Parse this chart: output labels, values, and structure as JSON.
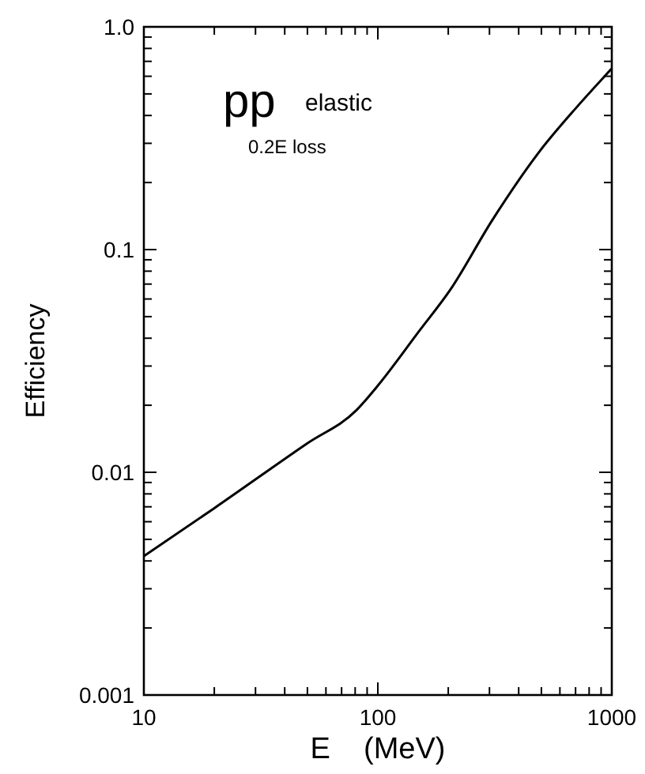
{
  "chart_data": {
    "type": "line",
    "xlabel": "E    (MeV)",
    "ylabel": "Efficiency",
    "log": "xy",
    "grid": false,
    "marker": "none",
    "line_style": "solid",
    "annotations": [
      "pp",
      "elastic",
      "0.2E loss"
    ],
    "xlim": [
      10,
      1000
    ],
    "ylim": [
      0.001,
      1.0
    ],
    "xticks": [
      10,
      {
        "value": 20,
        "label": null
      },
      {
        "value": 30,
        "label": null
      },
      {
        "value": 40,
        "label": null
      },
      {
        "value": 50,
        "label": null
      },
      {
        "value": 60,
        "label": null
      },
      {
        "value": 70,
        "label": null
      },
      {
        "value": 80,
        "label": null
      },
      {
        "value": 90,
        "label": null
      },
      100,
      {
        "value": 200,
        "label": null
      },
      {
        "value": 300,
        "label": null
      },
      {
        "value": 400,
        "label": null
      },
      {
        "value": 500,
        "label": null
      },
      {
        "value": 600,
        "label": null
      },
      {
        "value": 700,
        "label": null
      },
      {
        "value": 800,
        "label": null
      },
      {
        "value": 900,
        "label": null
      },
      1000
    ],
    "yticks": [
      0.001,
      {
        "value": 0.002,
        "label": null
      },
      {
        "value": 0.003,
        "label": null
      },
      {
        "value": 0.004,
        "label": null
      },
      {
        "value": 0.005,
        "label": null
      },
      {
        "value": 0.006,
        "label": null
      },
      {
        "value": 0.007,
        "label": null
      },
      {
        "value": 0.008,
        "label": null
      },
      {
        "value": 0.009,
        "label": null
      },
      0.01,
      {
        "value": 0.02,
        "label": null
      },
      {
        "value": 0.03,
        "label": null
      },
      {
        "value": 0.04,
        "label": null
      },
      {
        "value": 0.05,
        "label": null
      },
      {
        "value": 0.06,
        "label": null
      },
      {
        "value": 0.07,
        "label": null
      },
      {
        "value": 0.08,
        "label": null
      },
      {
        "value": 0.09,
        "label": null
      },
      0.1,
      {
        "value": 0.2,
        "label": null
      },
      {
        "value": 0.3,
        "label": null
      },
      {
        "value": 0.4,
        "label": null
      },
      {
        "value": 0.5,
        "label": null
      },
      {
        "value": 0.6,
        "label": null
      },
      {
        "value": 0.7,
        "label": null
      },
      {
        "value": 0.8,
        "label": null
      },
      {
        "value": 0.9,
        "label": null
      },
      {
        "value": 1.0,
        "label": "1.0"
      }
    ],
    "series": [
      {
        "color": "#000000",
        "x": [
          10,
          20,
          50,
          81,
          100,
          150,
          204,
          309,
          490,
          700,
          1000
        ],
        "values": [
          0.0042,
          0.0069,
          0.0135,
          0.019,
          0.0245,
          0.043,
          0.066,
          0.136,
          0.275,
          0.43,
          0.65
        ]
      }
    ]
  }
}
